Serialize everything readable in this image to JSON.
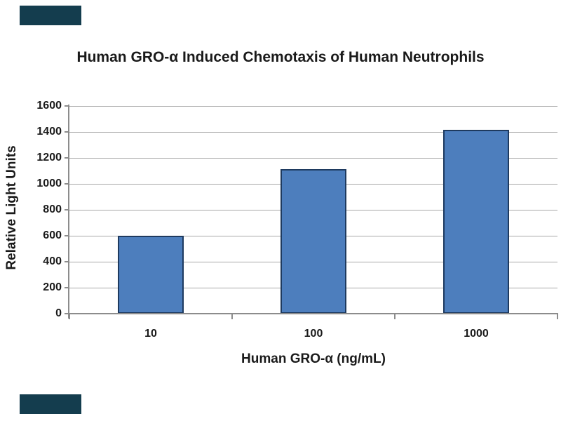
{
  "chart_data": {
    "type": "bar",
    "title": "Human GRO-α Induced Chemotaxis of Human Neutrophils",
    "xlabel": "Human GRO-α (ng/mL)",
    "ylabel": "Relative Light Units",
    "categories": [
      "10",
      "100",
      "1000"
    ],
    "values": [
      600,
      1115,
      1415
    ],
    "ylim": [
      0,
      1600
    ],
    "ytick_interval": 200,
    "ytick_labels": [
      "0",
      "200",
      "400",
      "600",
      "800",
      "1000",
      "1200",
      "1400",
      "1600"
    ],
    "grid": "horizontal gridlines on",
    "legend": "none",
    "colors": {
      "bar_fill": "#4d7ebd",
      "bar_border": "#1e3a5f",
      "gridline": "#a8a8a8",
      "axis": "#8c8c8c",
      "text": "#1a1a1a",
      "background": "#ffffff",
      "corner_block": "#143d4e"
    }
  },
  "decorations": {
    "corner_blocks": [
      "top-left",
      "bottom-left"
    ]
  }
}
